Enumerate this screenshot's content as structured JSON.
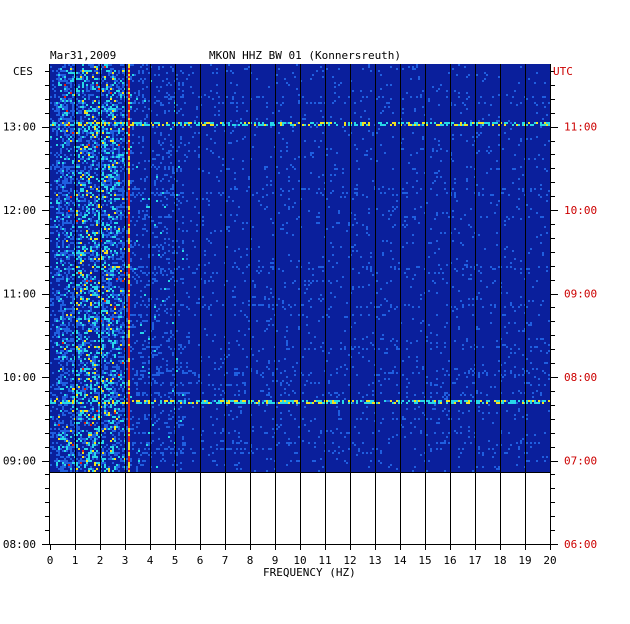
{
  "chart_data": {
    "type": "heatmap",
    "title_left": "Mar31,2009",
    "title_center": "MKON HHZ BW 01 (Konnersreuth)",
    "left_axis_label": "CES",
    "right_axis_label": "UTC",
    "xlabel": "FREQUENCY (HZ)",
    "xlim": [
      0,
      20
    ],
    "x_ticks": [
      "0",
      "1",
      "2",
      "3",
      "4",
      "5",
      "6",
      "7",
      "8",
      "9",
      "10",
      "11",
      "12",
      "13",
      "14",
      "15",
      "16",
      "17",
      "18",
      "19",
      "20"
    ],
    "left_ticks": [
      "13:00",
      "12:00",
      "11:00",
      "10:00",
      "09:00",
      "08:00"
    ],
    "right_ticks": [
      "11:00",
      "10:00",
      "09:00",
      "08:00",
      "07:00",
      "06:00"
    ],
    "time_range_ces": [
      "08:00",
      "13:45"
    ],
    "data_start_ces": "08:52",
    "colors": {
      "background_low": "#0a1f9c",
      "mid": "#1f5fe0",
      "cyan": "#27d8e8",
      "yellow": "#f0e020",
      "red": "#e02010",
      "left_text": "#000000",
      "right_text": "#cc0000"
    },
    "features": [
      {
        "name": "persistent line",
        "freq_hz": 3.1
      },
      {
        "name": "broadband event",
        "time_ces": "13:03"
      },
      {
        "name": "broadband event",
        "time_ces": "09:43"
      },
      {
        "name": "band",
        "freq_range_hz": [
          0.2,
          3.0
        ]
      }
    ]
  }
}
